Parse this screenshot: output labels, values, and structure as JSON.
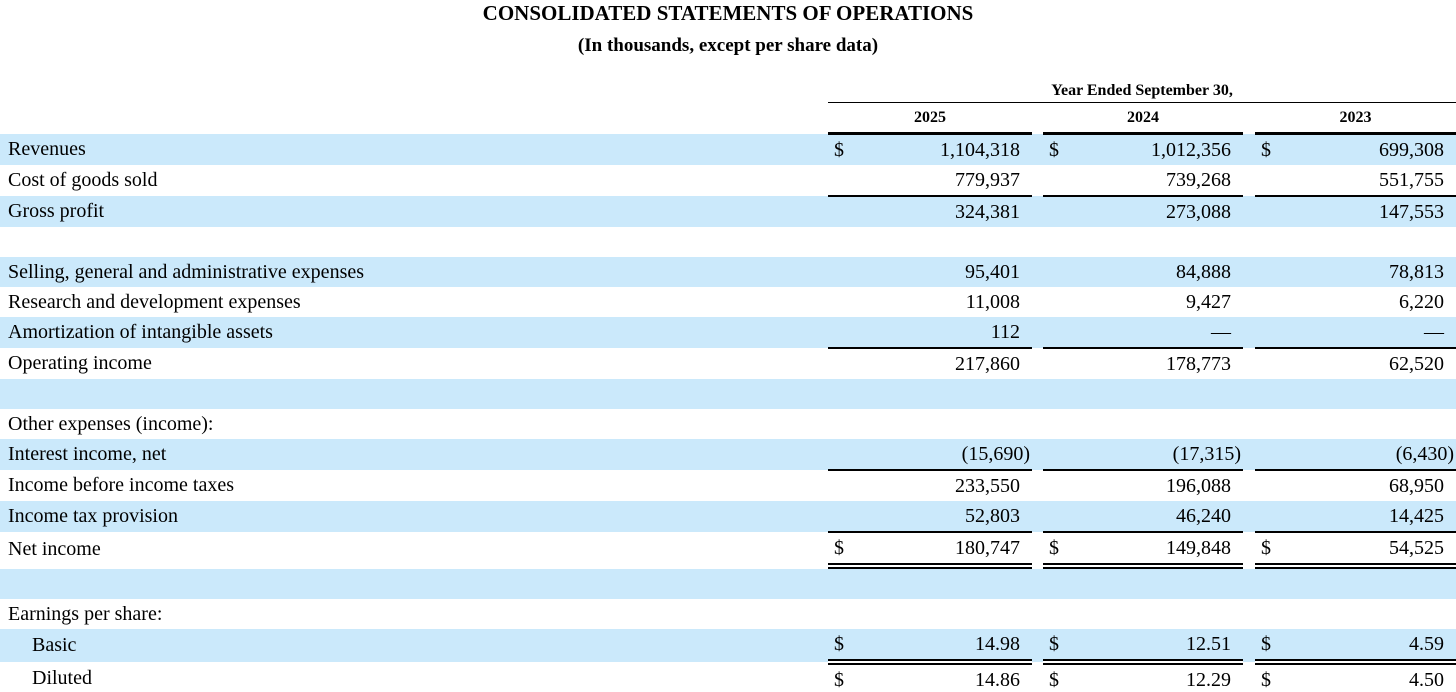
{
  "title": "CONSOLIDATED STATEMENTS OF OPERATIONS",
  "subtitle": "(In thousands, except per share data)",
  "colors": {
    "row_highlight": "#cbe9fb",
    "text": "#000000",
    "background": "#ffffff"
  },
  "table": {
    "period_header": "Year Ended September 30,",
    "years": [
      "2025",
      "2024",
      "2023"
    ],
    "currency_symbol": "$",
    "rows": [
      {
        "label": "Revenues",
        "dollar": true,
        "values": [
          "1,104,318",
          "1,012,356",
          "699,308"
        ],
        "shaded": true,
        "indent": false,
        "border": "none"
      },
      {
        "label": "Cost of goods sold",
        "dollar": false,
        "values": [
          "779,937",
          "739,268",
          "551,755"
        ],
        "shaded": false,
        "indent": false,
        "border": "single"
      },
      {
        "label": "Gross profit",
        "dollar": false,
        "values": [
          "324,381",
          "273,088",
          "147,553"
        ],
        "shaded": true,
        "indent": false,
        "border": "none"
      },
      {
        "blank": true,
        "shaded": false
      },
      {
        "label": "Selling, general and administrative expenses",
        "dollar": false,
        "values": [
          "95,401",
          "84,888",
          "78,813"
        ],
        "shaded": true,
        "indent": false,
        "border": "none"
      },
      {
        "label": "Research and development expenses",
        "dollar": false,
        "values": [
          "11,008",
          "9,427",
          "6,220"
        ],
        "shaded": false,
        "indent": false,
        "border": "none"
      },
      {
        "label": "Amortization of intangible assets",
        "dollar": false,
        "values": [
          "112",
          "—",
          "—"
        ],
        "shaded": true,
        "indent": false,
        "border": "single"
      },
      {
        "label": "Operating income",
        "dollar": false,
        "values": [
          "217,860",
          "178,773",
          "62,520"
        ],
        "shaded": false,
        "indent": false,
        "border": "none"
      },
      {
        "blank": true,
        "shaded": true
      },
      {
        "label": "Other expenses (income):",
        "dollar": false,
        "values": null,
        "shaded": false,
        "indent": false,
        "border": "none"
      },
      {
        "label": "Interest income, net",
        "dollar": false,
        "values": [
          "(15,690)",
          "(17,315)",
          "(6,430)"
        ],
        "shaded": true,
        "indent": false,
        "border": "single"
      },
      {
        "label": "Income before income taxes",
        "dollar": false,
        "values": [
          "233,550",
          "196,088",
          "68,950"
        ],
        "shaded": false,
        "indent": false,
        "border": "none"
      },
      {
        "label": "Income tax provision",
        "dollar": false,
        "values": [
          "52,803",
          "46,240",
          "14,425"
        ],
        "shaded": true,
        "indent": false,
        "border": "single"
      },
      {
        "label": "Net income",
        "dollar": true,
        "values": [
          "180,747",
          "149,848",
          "54,525"
        ],
        "shaded": false,
        "indent": false,
        "border": "double"
      },
      {
        "blank": true,
        "shaded": true
      },
      {
        "label": "Earnings per share:",
        "dollar": false,
        "values": null,
        "shaded": false,
        "indent": false,
        "border": "none"
      },
      {
        "label": "Basic",
        "dollar": true,
        "values": [
          "14.98",
          "12.51",
          "4.59"
        ],
        "shaded": true,
        "indent": true,
        "border": "double"
      },
      {
        "label": "Diluted",
        "dollar": true,
        "values": [
          "14.86",
          "12.29",
          "4.50"
        ],
        "shaded": false,
        "indent": true,
        "border": "none"
      }
    ]
  }
}
